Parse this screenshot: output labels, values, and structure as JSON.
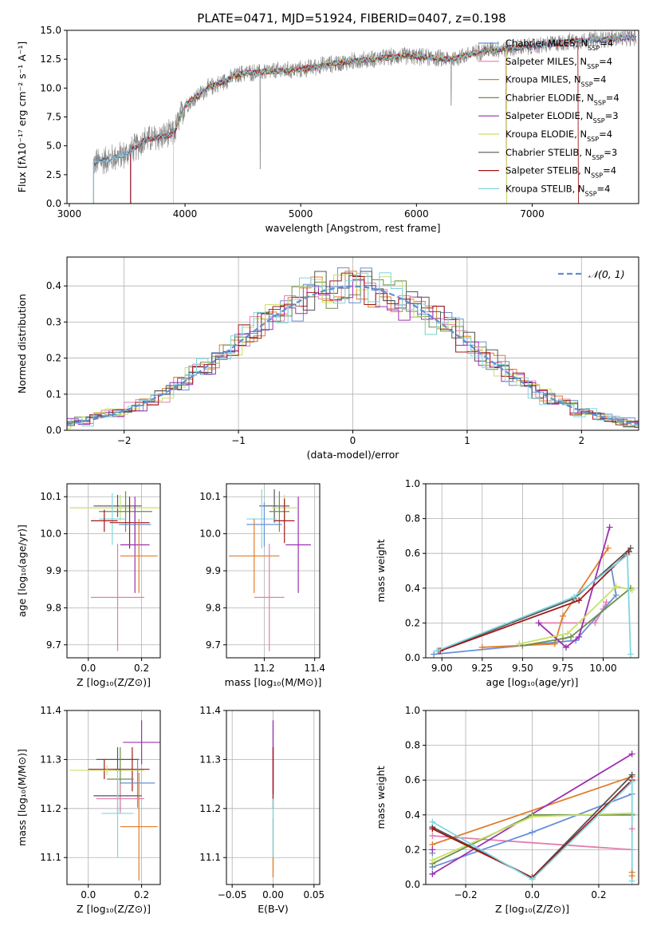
{
  "figure": {
    "title": "PLATE=0471, MJD=51924, FIBERID=0407, z=0.198"
  },
  "colors": {
    "blue": "#6a8fd8",
    "orange": "#e07d2b",
    "green": "#6c8e4a",
    "purple": "#9c30b0",
    "yellow": "#c8e06a",
    "dark": "#555555",
    "red": "#a01818",
    "cyan": "#7fd6e0",
    "pink": "#e27fae",
    "gray_data": "#888888"
  },
  "chart_data": [
    {
      "id": "spectrum",
      "type": "line",
      "xlabel": "wavelength [Angstrom, rest frame]",
      "ylabel": "Flux [fλ10⁻¹⁷ erg cm⁻² s⁻¹ A⁻¹]",
      "xlim": [
        2980,
        7920
      ],
      "ylim": [
        0,
        15
      ],
      "xticks": [
        3000,
        4000,
        5000,
        6000,
        7000
      ],
      "yticks": [
        0.0,
        2.5,
        5.0,
        7.5,
        10.0,
        12.5,
        15.0
      ],
      "grid": false,
      "legend_position": "top-right",
      "data_range": [
        3210,
        7900
      ],
      "continuum": [
        [
          3210,
          3.5
        ],
        [
          3500,
          4.3
        ],
        [
          3650,
          5.5
        ],
        [
          3900,
          6.0
        ],
        [
          4000,
          8.5
        ],
        [
          4200,
          10.0
        ],
        [
          4500,
          11.3
        ],
        [
          5000,
          11.6
        ],
        [
          5200,
          12.0
        ],
        [
          5600,
          12.5
        ],
        [
          5900,
          12.8
        ],
        [
          6300,
          12.5
        ],
        [
          6600,
          13.3
        ],
        [
          7000,
          13.6
        ],
        [
          7400,
          14.1
        ],
        [
          7900,
          14.4
        ]
      ],
      "legend": [
        {
          "label": "Chabrier MILES, N",
          "sub": "SSP",
          "tail": "=4",
          "color_key": "blue"
        },
        {
          "label": "Salpeter MILES, N",
          "sub": "SSP",
          "tail": "=4",
          "color_key": "pink"
        },
        {
          "label": "Kroupa MILES, N",
          "sub": "SSP",
          "tail": "=4",
          "color_key": "orange"
        },
        {
          "label": "Chabrier ELODIE, N",
          "sub": "SSP",
          "tail": "=4",
          "color_key": "green"
        },
        {
          "label": "Salpeter ELODIE, N",
          "sub": "SSP",
          "tail": "=3",
          "color_key": "purple"
        },
        {
          "label": "Kroupa ELODIE, N",
          "sub": "SSP",
          "tail": "=4",
          "color_key": "yellow"
        },
        {
          "label": "Chabrier STELIB, N",
          "sub": "SSP",
          "tail": "=3",
          "color_key": "dark"
        },
        {
          "label": "Salpeter STELIB, N",
          "sub": "SSP",
          "tail": "=4",
          "color_key": "red"
        },
        {
          "label": "Kroupa STELIB, N",
          "sub": "SSP",
          "tail": "=4",
          "color_key": "cyan"
        }
      ]
    },
    {
      "id": "residuals",
      "type": "bar",
      "xlabel": "(data-model)/error",
      "ylabel": "Normed distribution",
      "xlim": [
        -2.5,
        2.5
      ],
      "ylim": [
        0,
        0.48
      ],
      "xticks": [
        -2,
        -1,
        0,
        1,
        2
      ],
      "yticks": [
        0.0,
        0.1,
        0.2,
        0.3,
        0.4
      ],
      "grid": true,
      "legend_position": "top-right",
      "legend": [
        {
          "label": "𝒩(0, 1)",
          "color": "#5b8fd6"
        }
      ],
      "bin_width": 0.1
    },
    {
      "id": "age_vs_z",
      "type": "scatter",
      "xlabel": "Z [log₁₀(Z/Z⊙)]",
      "ylabel": "age  [log₁₀(age/yr)]",
      "xlim": [
        -0.08,
        0.27
      ],
      "ylim": [
        9.665,
        10.135
      ],
      "xticks": [
        0.0,
        0.2
      ],
      "yticks": [
        9.7,
        9.8,
        9.9,
        10.0,
        10.1
      ],
      "grid": true,
      "points": [
        {
          "color_key": "dark",
          "x": 0.11,
          "xerr": 0.09,
          "y": 10.075,
          "yerr": 0.03
        },
        {
          "color_key": "yellow",
          "x": 0.12,
          "xerr": 0.19,
          "y": 10.07,
          "yerr": 0.035
        },
        {
          "color_key": "green",
          "x": 0.14,
          "xerr": 0.1,
          "y": 10.06,
          "yerr": 0.055
        },
        {
          "color_key": "cyan",
          "x": 0.09,
          "xerr": 0.05,
          "y": 10.04,
          "yerr": 0.07
        },
        {
          "color_key": "red",
          "x": 0.06,
          "xerr": 0.05,
          "y": 10.035,
          "yerr": 0.03
        },
        {
          "color_key": "red",
          "x": 0.155,
          "xerr": 0.075,
          "y": 10.03,
          "yerr": 0.07
        },
        {
          "color_key": "blue",
          "x": 0.175,
          "xerr": 0.06,
          "y": 10.025,
          "yerr": 0.05
        },
        {
          "color_key": "purple",
          "x": 0.175,
          "xerr": 0.055,
          "y": 9.97,
          "yerr": 0.13
        },
        {
          "color_key": "orange",
          "x": 0.19,
          "xerr": 0.07,
          "y": 9.94,
          "yerr": 0.1
        },
        {
          "color_key": "pink",
          "x": 0.11,
          "xerr": 0.1,
          "y": 9.828,
          "yerr": 0.145
        }
      ]
    },
    {
      "id": "age_vs_mass",
      "type": "scatter",
      "xlabel": "mass [log₁₀(M/M⊙)]",
      "ylabel": "",
      "xlim": [
        11.05,
        11.42
      ],
      "ylim": [
        9.665,
        10.135
      ],
      "xticks": [
        11.2,
        11.4
      ],
      "yticks": [
        9.7,
        9.8,
        9.9,
        10.0,
        10.1
      ],
      "grid": true,
      "points": [
        {
          "color_key": "dark",
          "x": 11.24,
          "xerr": 0.06,
          "y": 10.075,
          "yerr": 0.045
        },
        {
          "color_key": "yellow",
          "x": 11.28,
          "xerr": 0.05,
          "y": 10.07,
          "yerr": 0.035
        },
        {
          "color_key": "green",
          "x": 11.26,
          "xerr": 0.04,
          "y": 10.06,
          "yerr": 0.055
        },
        {
          "color_key": "cyan",
          "x": 11.19,
          "xerr": 0.06,
          "y": 10.04,
          "yerr": 0.08
        },
        {
          "color_key": "red",
          "x": 11.28,
          "xerr": 0.04,
          "y": 10.035,
          "yerr": 0.06
        },
        {
          "color_key": "blue",
          "x": 11.2,
          "xerr": 0.07,
          "y": 10.025,
          "yerr": 0.06
        },
        {
          "color_key": "purple",
          "x": 11.335,
          "xerr": 0.05,
          "y": 9.97,
          "yerr": 0.13
        },
        {
          "color_key": "orange",
          "x": 11.16,
          "xerr": 0.1,
          "y": 9.94,
          "yerr": 0.1
        },
        {
          "color_key": "pink",
          "x": 11.22,
          "xerr": 0.06,
          "y": 9.828,
          "yerr": 0.145
        }
      ]
    },
    {
      "id": "weight_vs_age",
      "type": "line",
      "xlabel": "age  [log₁₀(age/yr)]",
      "ylabel": "mass weight",
      "xlim": [
        8.9,
        10.22
      ],
      "ylim": [
        0,
        1.0
      ],
      "xticks": [
        9.0,
        9.25,
        9.5,
        9.75,
        10.0
      ],
      "yticks": [
        0.0,
        0.2,
        0.4,
        0.6,
        0.8,
        1.0
      ],
      "grid": true,
      "series": [
        {
          "color_key": "pink",
          "x": [
            9.6,
            9.95,
            10.0,
            10.02
          ],
          "y": [
            0.2,
            0.2,
            0.28,
            0.32
          ]
        },
        {
          "color_key": "blue",
          "x": [
            8.95,
            9.83,
            10.08,
            10.05
          ],
          "y": [
            0.02,
            0.1,
            0.36,
            0.52
          ]
        },
        {
          "color_key": "orange",
          "x": [
            9.25,
            9.7,
            9.75,
            10.03
          ],
          "y": [
            0.06,
            0.08,
            0.24,
            0.63
          ]
        },
        {
          "color_key": "green",
          "x": [
            9.5,
            9.75,
            9.8,
            10.17
          ],
          "y": [
            0.07,
            0.11,
            0.12,
            0.4
          ]
        },
        {
          "color_key": "purple",
          "x": [
            9.6,
            9.77,
            9.85,
            10.04
          ],
          "y": [
            0.2,
            0.06,
            0.12,
            0.75
          ]
        },
        {
          "color_key": "yellow",
          "x": [
            9.48,
            9.78,
            10.08,
            10.18
          ],
          "y": [
            0.08,
            0.14,
            0.41,
            0.39
          ]
        },
        {
          "color_key": "dark",
          "x": [
            8.98,
            9.82,
            10.17
          ],
          "y": [
            0.04,
            0.34,
            0.63
          ]
        },
        {
          "color_key": "red",
          "x": [
            8.99,
            9.85,
            10.16
          ],
          "y": [
            0.04,
            0.33,
            0.61
          ]
        },
        {
          "color_key": "cyan",
          "x": [
            8.97,
            9.82,
            10.15,
            10.17
          ],
          "y": [
            0.04,
            0.35,
            0.59,
            0.02
          ]
        }
      ]
    },
    {
      "id": "mass_vs_z",
      "type": "scatter",
      "xlabel": "Z [log₁₀(Z/Z⊙)]",
      "ylabel": "mass [log₁₀(M/M⊙)]",
      "xlim": [
        -0.08,
        0.27
      ],
      "ylim": [
        11.045,
        11.4
      ],
      "xticks": [
        0.0,
        0.2
      ],
      "yticks": [
        11.1,
        11.2,
        11.3,
        11.4
      ],
      "grid": true,
      "points": [
        {
          "color_key": "purple",
          "x": 0.2,
          "xerr": 0.07,
          "y": 11.335,
          "yerr": 0.045
        },
        {
          "color_key": "dark",
          "x": 0.11,
          "xerr": 0.08,
          "y": 11.3,
          "yerr": 0.025
        },
        {
          "color_key": "red",
          "x": 0.06,
          "xerr": 0.06,
          "y": 11.28,
          "yerr": 0.02
        },
        {
          "color_key": "red",
          "x": 0.165,
          "xerr": 0.065,
          "y": 11.28,
          "yerr": 0.045
        },
        {
          "color_key": "yellow",
          "x": 0.07,
          "xerr": 0.14,
          "y": 11.278,
          "yerr": 0.01
        },
        {
          "color_key": "green",
          "x": 0.12,
          "xerr": 0.05,
          "y": 11.26,
          "yerr": 0.065
        },
        {
          "color_key": "blue",
          "x": 0.185,
          "xerr": 0.065,
          "y": 11.252,
          "yerr": 0.05
        },
        {
          "color_key": "pink",
          "x": 0.12,
          "xerr": 0.09,
          "y": 11.22,
          "yerr": 0.03
        },
        {
          "color_key": "dark",
          "x": 0.11,
          "xerr": 0.09,
          "y": 11.226,
          "yerr": 0.035
        },
        {
          "color_key": "cyan",
          "x": 0.11,
          "xerr": 0.06,
          "y": 11.19,
          "yerr": 0.09
        },
        {
          "color_key": "orange",
          "x": 0.19,
          "xerr": 0.07,
          "y": 11.163,
          "yerr": 0.11
        }
      ]
    },
    {
      "id": "mass_vs_ebv",
      "type": "scatter",
      "xlabel": "E(B-V)",
      "ylabel": "",
      "xlim": [
        -0.057,
        0.057
      ],
      "ylim": [
        11.045,
        11.4
      ],
      "xticks": [
        -0.05,
        0.0,
        0.05
      ],
      "yticks": [
        11.1,
        11.2,
        11.3,
        11.4
      ],
      "grid": true,
      "bars": [
        {
          "color_key": "purple",
          "y0": 11.23,
          "y1": 11.38
        },
        {
          "color_key": "red",
          "y0": 11.2,
          "y1": 11.325
        },
        {
          "color_key": "orange",
          "y0": 11.06,
          "y1": 11.18
        },
        {
          "color_key": "cyan",
          "y0": 11.1,
          "y1": 11.22
        }
      ]
    },
    {
      "id": "weight_vs_z",
      "type": "line",
      "xlabel": "Z [log₁₀(Z/Z⊙)]",
      "ylabel": "mass weight",
      "xlim": [
        -0.32,
        0.32
      ],
      "ylim": [
        0,
        1.0
      ],
      "xticks": [
        -0.2,
        0.0,
        0.2
      ],
      "yticks": [
        0.0,
        0.2,
        0.4,
        0.6,
        0.8,
        1.0
      ],
      "grid": true,
      "series": [
        {
          "color_key": "pink",
          "x": [
            -0.3,
            0.3
          ],
          "y": [
            0.28,
            0.2
          ]
        },
        {
          "color_key": "blue",
          "x": [
            -0.3,
            0.0,
            0.3
          ],
          "y": [
            0.1,
            0.3,
            0.52
          ]
        },
        {
          "color_key": "orange",
          "x": [
            -0.3,
            0.3
          ],
          "y": [
            0.23,
            0.62
          ]
        },
        {
          "color_key": "purple",
          "x": [
            -0.3,
            0.3
          ],
          "y": [
            0.06,
            0.75
          ]
        },
        {
          "color_key": "green",
          "x": [
            -0.3,
            0.0,
            0.3
          ],
          "y": [
            0.12,
            0.4,
            0.4
          ]
        },
        {
          "color_key": "yellow",
          "x": [
            -0.3,
            0.0,
            0.3
          ],
          "y": [
            0.14,
            0.39,
            0.41
          ]
        },
        {
          "color_key": "dark",
          "x": [
            -0.3,
            0.0,
            0.3
          ],
          "y": [
            0.33,
            0.04,
            0.63
          ]
        },
        {
          "color_key": "red",
          "x": [
            -0.3,
            0.0,
            0.3
          ],
          "y": [
            0.32,
            0.04,
            0.6
          ]
        },
        {
          "color_key": "cyan",
          "x": [
            -0.3,
            0.0,
            0.3,
            0.3
          ],
          "y": [
            0.36,
            0.03,
            0.59,
            0.02
          ]
        }
      ],
      "end_markers": [
        {
          "color_key": "orange",
          "x": 0.3,
          "y": 0.07
        },
        {
          "color_key": "orange",
          "x": 0.3,
          "y": 0.05
        },
        {
          "color_key": "pink",
          "x": 0.3,
          "y": 0.32
        },
        {
          "color_key": "blue",
          "x": -0.3,
          "y": 0.18
        },
        {
          "color_key": "purple",
          "x": -0.3,
          "y": 0.2
        }
      ]
    }
  ]
}
